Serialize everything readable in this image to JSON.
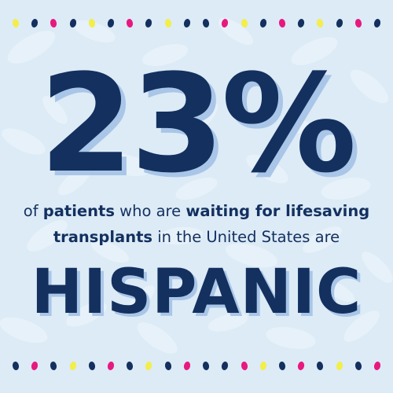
{
  "colors": {
    "background": "#dcebf6",
    "pattern": "#eaf3fa",
    "text": "#13305f",
    "shadow": "#a9c6e8",
    "dot_pink": "#e8197e",
    "dot_yellow": "#f3ee4a",
    "dot_navy": "#13305f"
  },
  "statistic": "23%",
  "sentence": {
    "line1": [
      {
        "text": "of ",
        "bold": false
      },
      {
        "text": "patients",
        "bold": true
      },
      {
        "text": " who are ",
        "bold": false
      },
      {
        "text": "waiting for lifesaving",
        "bold": true
      }
    ],
    "line2": [
      {
        "text": "transplants",
        "bold": true
      },
      {
        "text": " in the United States are",
        "bold": false
      }
    ]
  },
  "highlight_word": "HISPANIC",
  "dot_rows": {
    "top": [
      "yellow",
      "navy",
      "pink",
      "navy",
      "yellow",
      "navy",
      "pink",
      "navy",
      "yellow",
      "navy",
      "navy",
      "pink",
      "yellow",
      "navy",
      "pink",
      "navy",
      "yellow",
      "navy",
      "pink",
      "navy"
    ],
    "bottom": [
      "navy",
      "pink",
      "navy",
      "yellow",
      "navy",
      "pink",
      "navy",
      "yellow",
      "navy",
      "pink",
      "navy",
      "navy",
      "pink",
      "yellow",
      "navy",
      "pink",
      "navy",
      "yellow",
      "navy",
      "pink"
    ]
  }
}
